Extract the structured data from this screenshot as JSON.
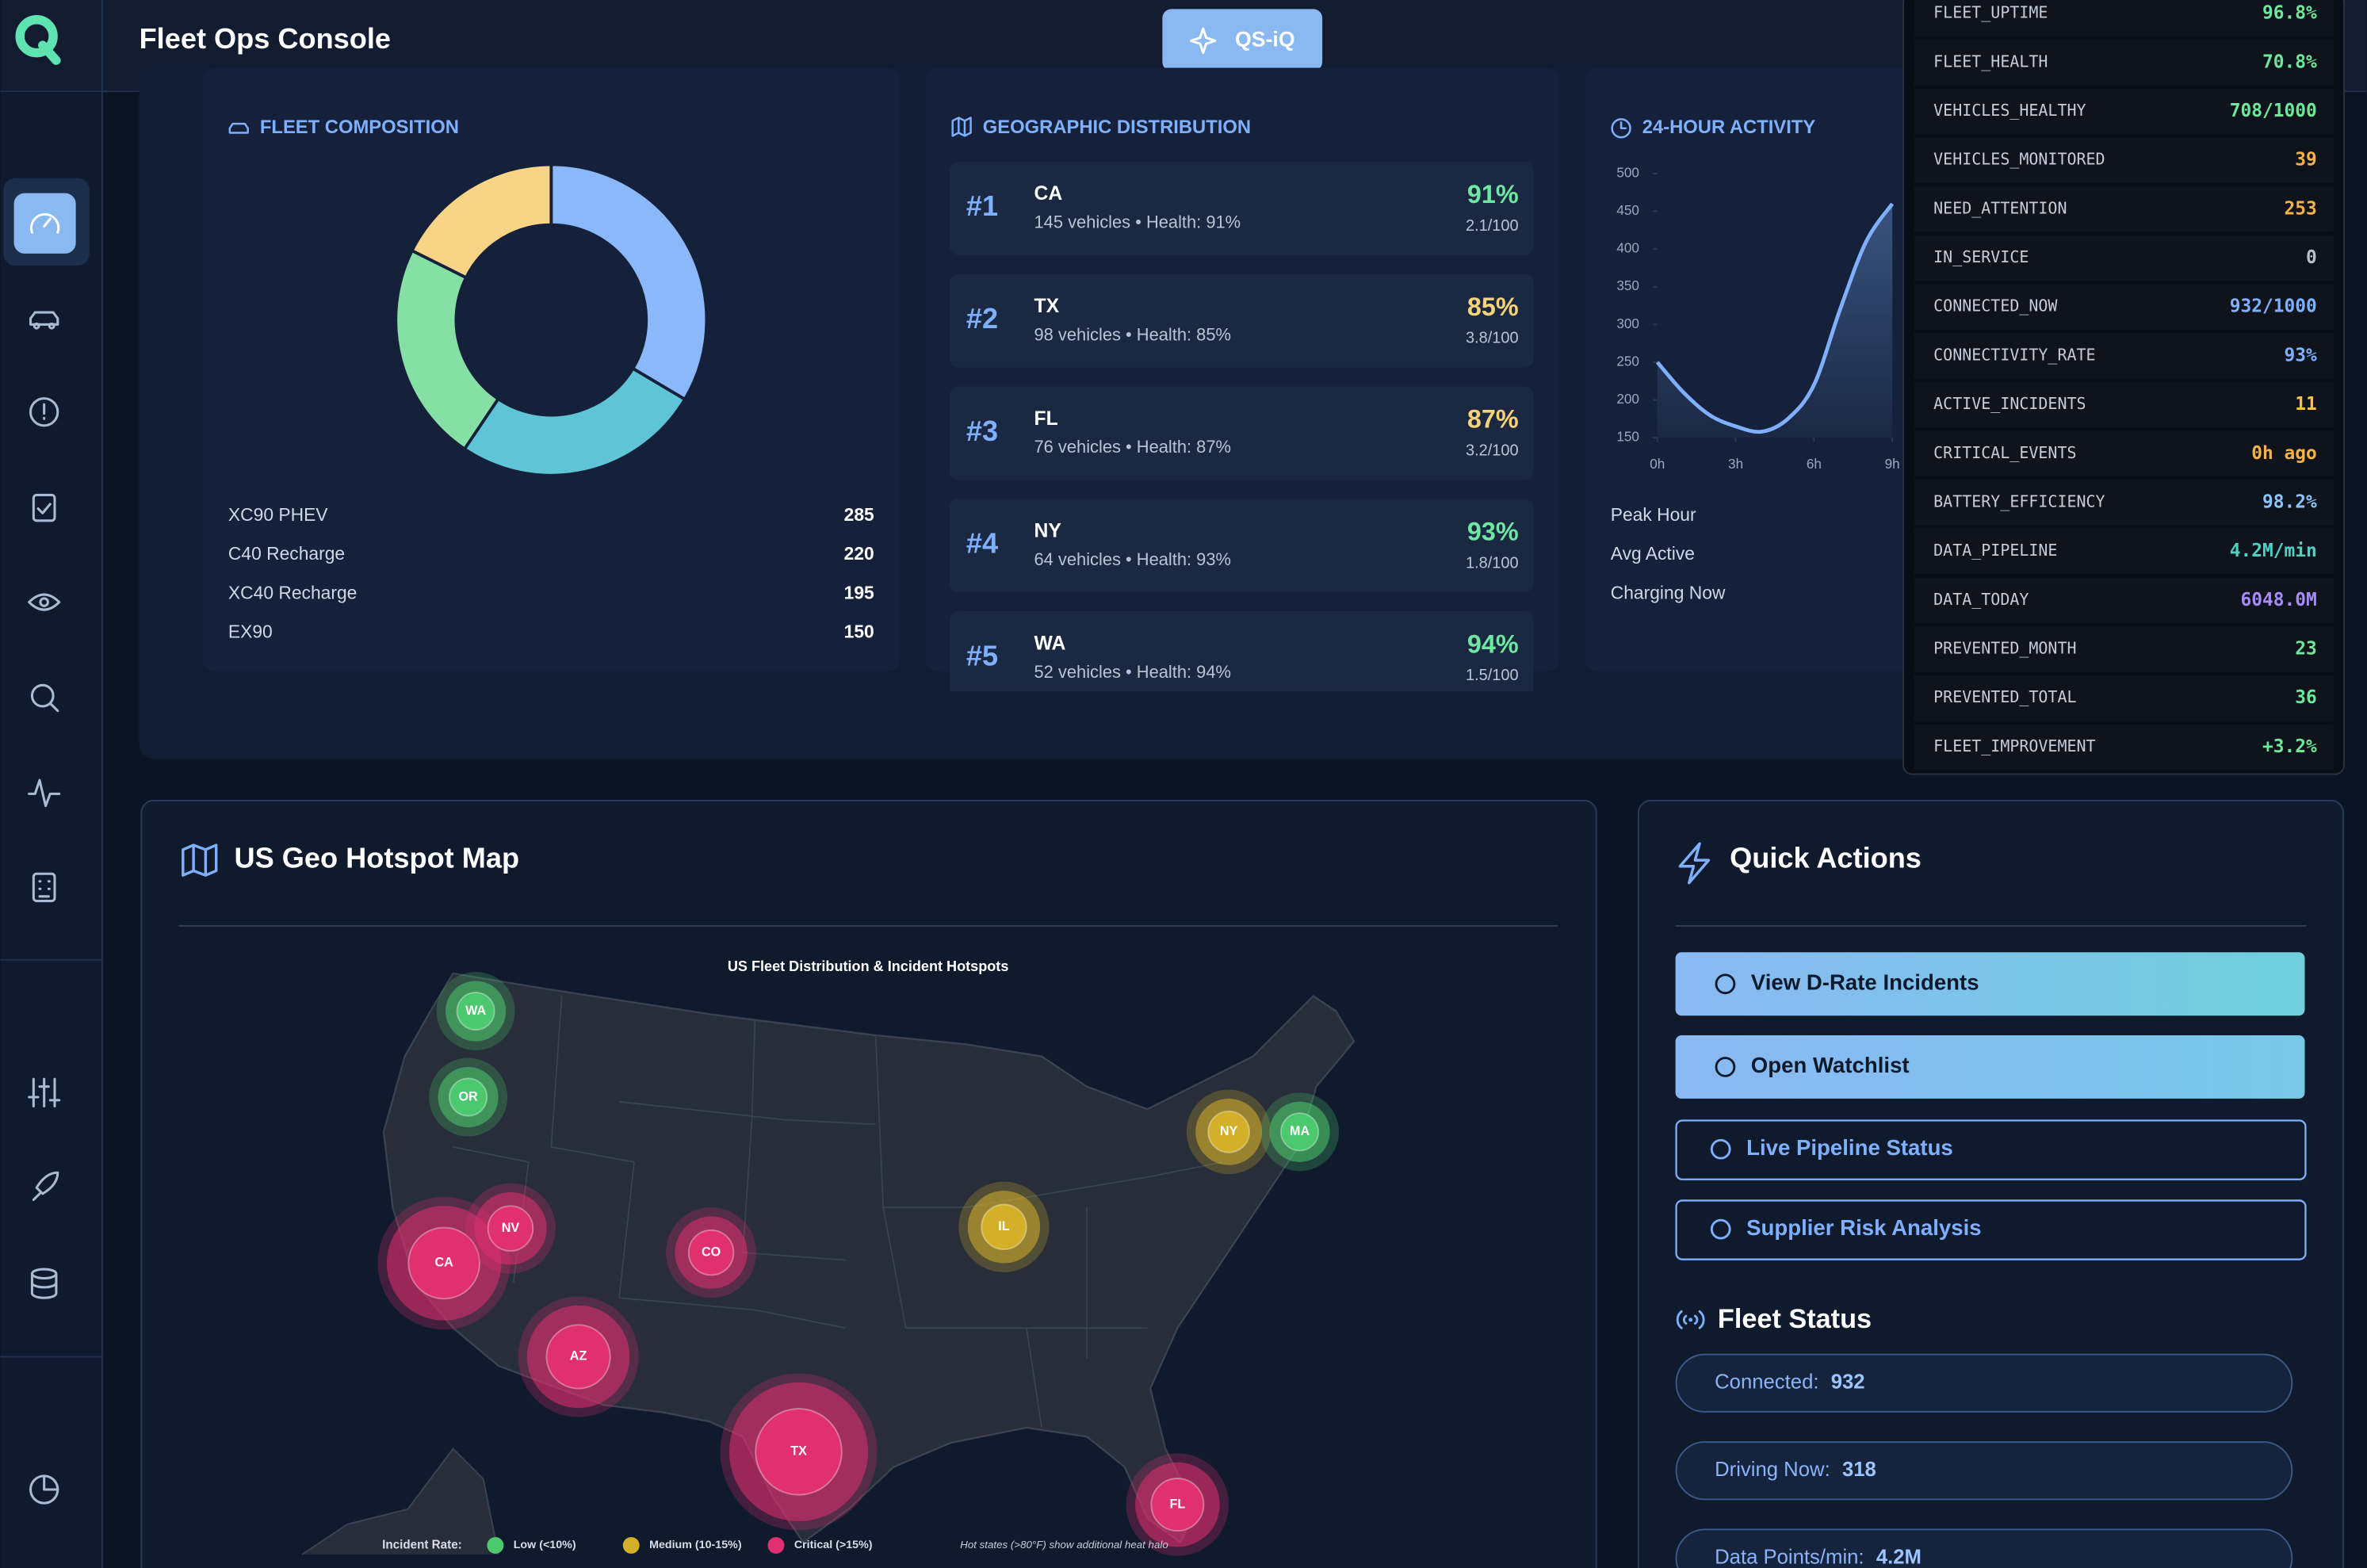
{
  "header": {
    "title": "Fleet Ops Console",
    "button": "QS-iQ"
  },
  "fleet_composition": {
    "title": "FLEET COMPOSITION",
    "items": [
      {
        "name": "XC90 PHEV",
        "value": 285,
        "color": "#8ab8f8"
      },
      {
        "name": "C40 Recharge",
        "value": 220,
        "color": "#5ec4d6"
      },
      {
        "name": "XC40 Recharge",
        "value": 195,
        "color": "#86e0a6"
      },
      {
        "name": "EX90",
        "value": 150,
        "color": "#f7d486"
      }
    ]
  },
  "geographic_distribution": {
    "title": "GEOGRAPHIC DISTRIBUTION",
    "items": [
      {
        "rank": "#1",
        "state": "CA",
        "detail": "145 vehicles • Health: 91%",
        "health": "91%",
        "score": "2.1/100",
        "color": "#6ee7a0"
      },
      {
        "rank": "#2",
        "state": "TX",
        "detail": "98 vehicles • Health: 85%",
        "health": "85%",
        "score": "3.8/100",
        "color": "#f5d37a"
      },
      {
        "rank": "#3",
        "state": "FL",
        "detail": "76 vehicles • Health: 87%",
        "health": "87%",
        "score": "3.2/100",
        "color": "#f5d37a"
      },
      {
        "rank": "#4",
        "state": "NY",
        "detail": "64 vehicles • Health: 93%",
        "health": "93%",
        "score": "1.8/100",
        "color": "#6ee7a0"
      },
      {
        "rank": "#5",
        "state": "WA",
        "detail": "52 vehicles • Health: 94%",
        "health": "94%",
        "score": "1.5/100",
        "color": "#6ee7a0"
      }
    ]
  },
  "activity": {
    "title": "24-HOUR ACTIVITY",
    "chart": {
      "type": "line",
      "x": [
        0,
        1,
        2,
        3,
        4,
        5,
        6,
        7,
        8,
        9
      ],
      "values": [
        250,
        210,
        180,
        165,
        158,
        175,
        220,
        320,
        410,
        460
      ],
      "color": "#7fb0ff",
      "xlim": [
        0,
        9.5
      ],
      "ylim": [
        150,
        500
      ],
      "xticks": [
        {
          "value": 0,
          "label": "0h"
        },
        {
          "value": 3,
          "label": "3h"
        },
        {
          "value": 6,
          "label": "6h"
        },
        {
          "value": 9,
          "label": "9h"
        }
      ],
      "yticks": [
        150,
        200,
        250,
        300,
        350,
        400,
        450,
        500
      ]
    },
    "stats": [
      "Peak Hour",
      "Avg Active",
      "Charging Now"
    ]
  },
  "metrics": [
    {
      "key": "FLEET_UPTIME",
      "value": "96.8%",
      "color": "#6ee79a"
    },
    {
      "key": "FLEET_HEALTH",
      "value": "70.8%",
      "color": "#6ee79a"
    },
    {
      "key": "VEHICLES_HEALTHY",
      "value": "708/1000",
      "color": "#6ee79a"
    },
    {
      "key": "VEHICLES_MONITORED",
      "value": "39",
      "color": "#f6b24a"
    },
    {
      "key": "NEED_ATTENTION",
      "value": "253",
      "color": "#f6b24a"
    },
    {
      "key": "IN_SERVICE",
      "value": "0",
      "color": "#b8c0cc"
    },
    {
      "key": "CONNECTED_NOW",
      "value": "932/1000",
      "color": "#7fb0ff"
    },
    {
      "key": "CONNECTIVITY_RATE",
      "value": "93%",
      "color": "#7fb0ff"
    },
    {
      "key": "ACTIVE_INCIDENTS",
      "value": "11",
      "color": "#f5c542"
    },
    {
      "key": "CRITICAL_EVENTS",
      "value": "0h ago",
      "color": "#f6b24a"
    },
    {
      "key": "BATTERY_EFFICIENCY",
      "value": "98.2%",
      "color": "#8cc4ff"
    },
    {
      "key": "DATA_PIPELINE",
      "value": "4.2M/min",
      "color": "#4fd1c5"
    },
    {
      "key": "DATA_TODAY",
      "value": "6048.0M",
      "color": "#a78bfa"
    },
    {
      "key": "PREVENTED_MONTH",
      "value": "23",
      "color": "#6ee79a"
    },
    {
      "key": "PREVENTED_TOTAL",
      "value": "36",
      "color": "#6ee79a"
    },
    {
      "key": "FLEET_IMPROVEMENT",
      "value": "+3.2%",
      "color": "#6ee79a"
    }
  ],
  "map": {
    "title": "US Geo Hotspot Map",
    "subtitle": "US Fleet Distribution & Incident Hotspots",
    "hotspots": [
      {
        "label": "WA",
        "color": "#4cc96e"
      },
      {
        "label": "OR",
        "color": "#4cc96e"
      },
      {
        "label": "CA",
        "color": "#e0306f"
      },
      {
        "label": "NV",
        "color": "#e0306f"
      },
      {
        "label": "CO",
        "color": "#e0306f"
      },
      {
        "label": "AZ",
        "color": "#e0306f"
      },
      {
        "label": "TX",
        "color": "#e0306f"
      },
      {
        "label": "IL",
        "color": "#d4b02a"
      },
      {
        "label": "NY",
        "color": "#d4b02a"
      },
      {
        "label": "MA",
        "color": "#4cc96e"
      },
      {
        "label": "FL",
        "color": "#e0306f"
      }
    ],
    "legend": {
      "title": "Incident Rate:",
      "items": [
        {
          "label": "Low (<10%)",
          "color": "#4cc96e"
        },
        {
          "label": "Medium (10-15%)",
          "color": "#d4b02a"
        },
        {
          "label": "Critical (>15%)",
          "color": "#e0306f"
        }
      ],
      "note": "Hot states (>80°F) show additional heat halo"
    }
  },
  "quick_actions": {
    "title": "Quick Actions",
    "buttons": [
      "View D-Rate Incidents",
      "Open Watchlist",
      "Live Pipeline Status",
      "Supplier Risk Analysis"
    ]
  },
  "fleet_status": {
    "title": "Fleet Status",
    "items": [
      {
        "label": "Connected:",
        "value": "932"
      },
      {
        "label": "Driving Now:",
        "value": "318"
      },
      {
        "label": "Data Points/min:",
        "value": "4.2M"
      }
    ]
  }
}
